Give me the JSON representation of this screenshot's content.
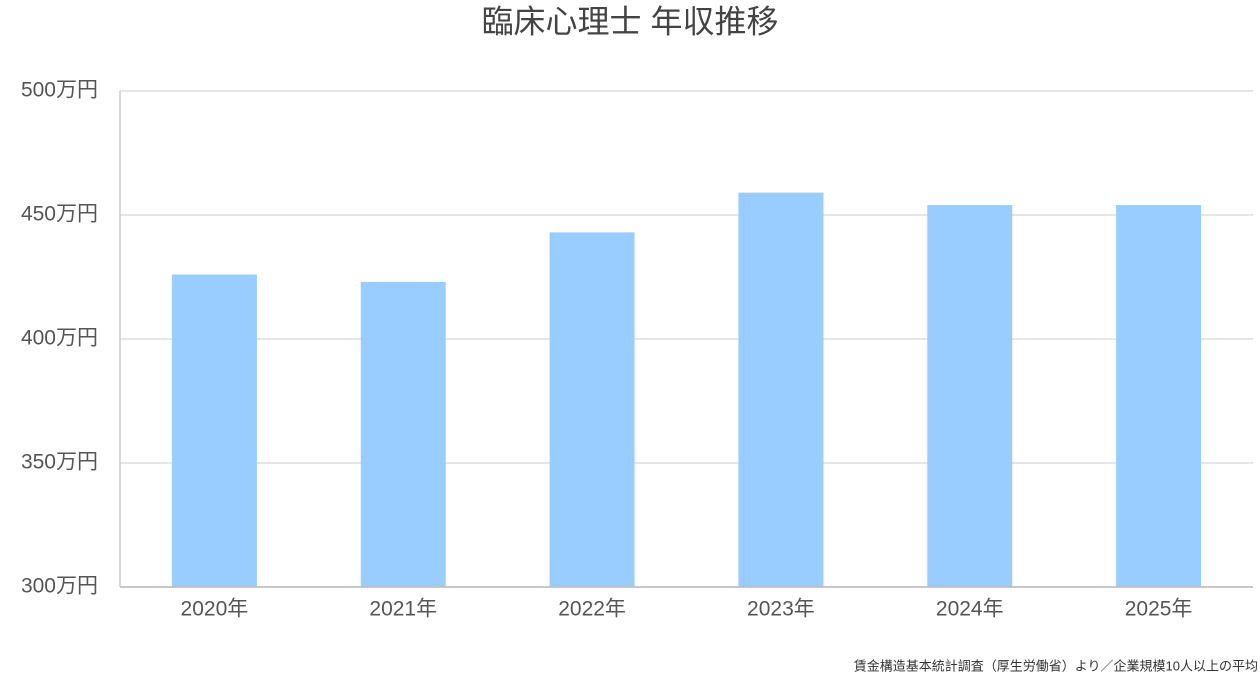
{
  "chart_data": {
    "type": "bar",
    "title": "臨床心理士 年収推移",
    "categories": [
      "2020年",
      "2021年",
      "2022年",
      "2023年",
      "2024年",
      "2025年"
    ],
    "values": [
      426,
      423,
      443,
      459,
      454,
      454
    ],
    "color": "#99ccff",
    "ylim": [
      300,
      500
    ],
    "yticks": [
      {
        "value": 300,
        "label": "300万円"
      },
      {
        "value": 350,
        "label": "350万円"
      },
      {
        "value": 400,
        "label": "400万円"
      },
      {
        "value": 450,
        "label": "450万円"
      },
      {
        "value": 500,
        "label": "500万円"
      }
    ],
    "grid": true,
    "source": "賃金構造基本統計調査（厚生労働省）より／企業規模10人以上の平均"
  }
}
